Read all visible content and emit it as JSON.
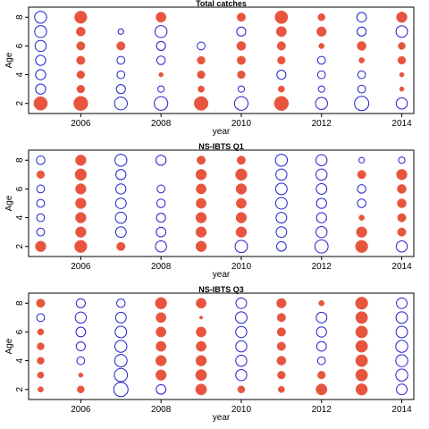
{
  "colors": {
    "positive": "#e8553f",
    "negative": "#1f1fd0"
  },
  "chart_data": [
    {
      "type": "scatter",
      "title": "Total catches",
      "xlabel": "year",
      "ylabel": "Age",
      "xlim": [
        2004.7,
        2014.3
      ],
      "ylim": [
        1.3,
        8.7
      ],
      "x_ticks": [
        2006,
        2008,
        2010,
        2012,
        2014
      ],
      "y_ticks": [
        2,
        4,
        6,
        8
      ],
      "x": [
        2005,
        2006,
        2007,
        2008,
        2009,
        2010,
        2011,
        2012,
        2013,
        2014
      ],
      "ages": [
        2,
        3,
        4,
        5,
        6,
        7,
        8
      ],
      "values": [
        [
          0.9,
          1.0,
          -0.8,
          -0.9,
          0.95,
          -0.9,
          1.0,
          -0.7,
          -1.0,
          -0.6
        ],
        [
          -0.5,
          0.3,
          -0.4,
          -0.2,
          0.2,
          -0.2,
          0.2,
          -0.2,
          -0.3,
          0.1
        ],
        [
          -0.5,
          0.3,
          -0.3,
          0.1,
          0.3,
          0.3,
          -0.4,
          -0.3,
          -0.3,
          0.1
        ],
        [
          -0.5,
          0.35,
          -0.3,
          -0.35,
          0.3,
          0.35,
          0.3,
          -0.3,
          0.15,
          0.3
        ],
        [
          -0.6,
          0.35,
          0.35,
          -0.4,
          -0.3,
          0.4,
          0.35,
          0.15,
          0.4,
          0.25
        ],
        [
          -0.7,
          0.4,
          -0.15,
          -0.7,
          0.0,
          -0.4,
          0.5,
          0.45,
          -0.4,
          -0.65
        ],
        [
          -0.7,
          0.75,
          0.0,
          0.5,
          0.0,
          0.35,
          0.8,
          0.25,
          -0.45,
          0.55
        ]
      ]
    },
    {
      "type": "scatter",
      "title": "NS-IBTS Q1",
      "xlabel": "year",
      "ylabel": "Age",
      "xlim": [
        2004.7,
        2014.3
      ],
      "ylim": [
        1.3,
        8.7
      ],
      "x_ticks": [
        2006,
        2008,
        2010,
        2012,
        2014
      ],
      "y_ticks": [
        2,
        4,
        6,
        8
      ],
      "x": [
        2005,
        2006,
        2007,
        2008,
        2009,
        2010,
        2011,
        2012,
        2013,
        2014
      ],
      "ages": [
        2,
        3,
        4,
        5,
        6,
        7,
        8
      ],
      "values": [
        [
          0.55,
          0.75,
          0.35,
          -0.6,
          0.55,
          -0.75,
          -0.45,
          -0.85,
          0.75,
          -0.6
        ],
        [
          -0.3,
          0.55,
          -0.55,
          -0.45,
          0.55,
          0.55,
          -0.55,
          -0.6,
          0.55,
          0.35
        ],
        [
          -0.3,
          0.55,
          -0.6,
          -0.4,
          0.55,
          0.55,
          -0.55,
          -0.5,
          0.15,
          0.35
        ],
        [
          -0.3,
          0.55,
          -0.55,
          -0.35,
          0.5,
          0.5,
          -0.65,
          -0.5,
          -0.35,
          0.4
        ],
        [
          -0.3,
          0.55,
          -0.5,
          -0.3,
          0.5,
          0.55,
          -0.65,
          -0.55,
          -0.35,
          0.4
        ],
        [
          0.3,
          0.65,
          -0.5,
          0.0,
          0.55,
          0.65,
          -0.6,
          -0.6,
          0.35,
          0.55
        ],
        [
          -0.35,
          0.55,
          -0.7,
          -0.5,
          0.35,
          0.35,
          -0.7,
          -0.6,
          -0.15,
          -0.2
        ]
      ]
    },
    {
      "type": "scatter",
      "title": "NS-IBTS Q3",
      "xlabel": "year",
      "ylabel": "Age",
      "xlim": [
        2004.7,
        2014.3
      ],
      "ylim": [
        1.3,
        8.7
      ],
      "x_ticks": [
        2006,
        2008,
        2010,
        2012,
        2014
      ],
      "y_ticks": [
        2,
        4,
        6,
        8
      ],
      "x": [
        2005,
        2006,
        2007,
        2008,
        2009,
        2010,
        2011,
        2012,
        2013,
        2014
      ],
      "ages": [
        2,
        3,
        4,
        5,
        6,
        7,
        8
      ],
      "values": [
        [
          0.15,
          0.25,
          -1.0,
          -0.45,
          0.6,
          0.25,
          0.2,
          0.6,
          0.65,
          -0.55
        ],
        [
          0.2,
          0.1,
          -0.85,
          0.55,
          0.6,
          -0.6,
          0.3,
          0.3,
          0.7,
          -0.7
        ],
        [
          0.25,
          -0.3,
          -0.75,
          0.55,
          0.55,
          -0.6,
          0.4,
          -0.3,
          0.7,
          -0.7
        ],
        [
          0.25,
          -0.4,
          -0.7,
          0.5,
          0.5,
          -0.6,
          0.35,
          -0.45,
          0.7,
          -0.7
        ],
        [
          0.2,
          -0.45,
          -0.65,
          0.5,
          0.5,
          -0.6,
          0.35,
          -0.5,
          0.7,
          -0.65
        ],
        [
          -0.3,
          -0.6,
          -0.55,
          0.5,
          0.05,
          -0.65,
          0.35,
          -0.55,
          0.7,
          -0.65
        ],
        [
          0.35,
          -0.4,
          -0.35,
          0.65,
          0.5,
          -0.55,
          0.45,
          0.15,
          0.75,
          -0.55
        ]
      ]
    }
  ]
}
